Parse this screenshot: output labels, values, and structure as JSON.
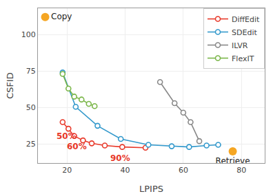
{
  "chart_data": {
    "type": "line",
    "xlabel": "LPIPS",
    "ylabel": "CSFID",
    "xlim": [
      10,
      88
    ],
    "ylim": [
      12,
      118
    ],
    "xticks": [
      20,
      40,
      60,
      80
    ],
    "yticks": [
      25,
      50,
      75,
      100
    ],
    "grid": true,
    "legend": "upper right",
    "series": [
      {
        "name": "DiffEdit",
        "type": "line",
        "marker": "circle",
        "color": "#e8392a",
        "x": [
          18.5,
          20.5,
          22.5,
          25.5,
          28.5,
          33.0,
          39.0,
          47.0
        ],
        "values": [
          40.0,
          35.5,
          30.5,
          27.5,
          25.5,
          24.0,
          23.0,
          22.5
        ]
      },
      {
        "name": "SDEdit",
        "type": "line",
        "marker": "circle",
        "color": "#3399cc",
        "x": [
          18.5,
          23.0,
          30.5,
          38.5,
          48.0,
          56.0,
          62.0,
          68.0,
          72.0
        ],
        "values": [
          74.0,
          50.5,
          37.5,
          28.5,
          24.5,
          23.5,
          23.0,
          24.0,
          24.5
        ]
      },
      {
        "name": "ILVR",
        "type": "line",
        "marker": "circle",
        "color": "#888888",
        "x": [
          52.0,
          57.0,
          60.0,
          62.5,
          65.5
        ],
        "values": [
          67.5,
          53.0,
          46.5,
          40.0,
          27.0
        ]
      },
      {
        "name": "FlexIT",
        "type": "line",
        "marker": "circle",
        "color": "#7ab648",
        "x": [
          18.5,
          20.5,
          22.5,
          25.0,
          27.5,
          29.5
        ],
        "values": [
          73.0,
          63.0,
          57.5,
          55.5,
          52.5,
          51.0
        ]
      },
      {
        "name": "Copy",
        "type": "scatter",
        "marker": "circle",
        "color": "#f5a623",
        "x": [
          12.5
        ],
        "values": [
          112.0
        ]
      },
      {
        "name": "Retrieve",
        "type": "scatter",
        "marker": "circle",
        "color": "#f5a623",
        "x": [
          77.0
        ],
        "values": [
          20.0
        ]
      }
    ],
    "annotations": [
      {
        "text": "50%",
        "x": 16.0,
        "y": 34.5,
        "color": "#e8392a"
      },
      {
        "text": "60%",
        "x": 19.5,
        "y": 27.5,
        "color": "#e8392a"
      },
      {
        "text": "90%",
        "x": 34.5,
        "y": 19.5,
        "color": "#e8392a"
      }
    ]
  }
}
